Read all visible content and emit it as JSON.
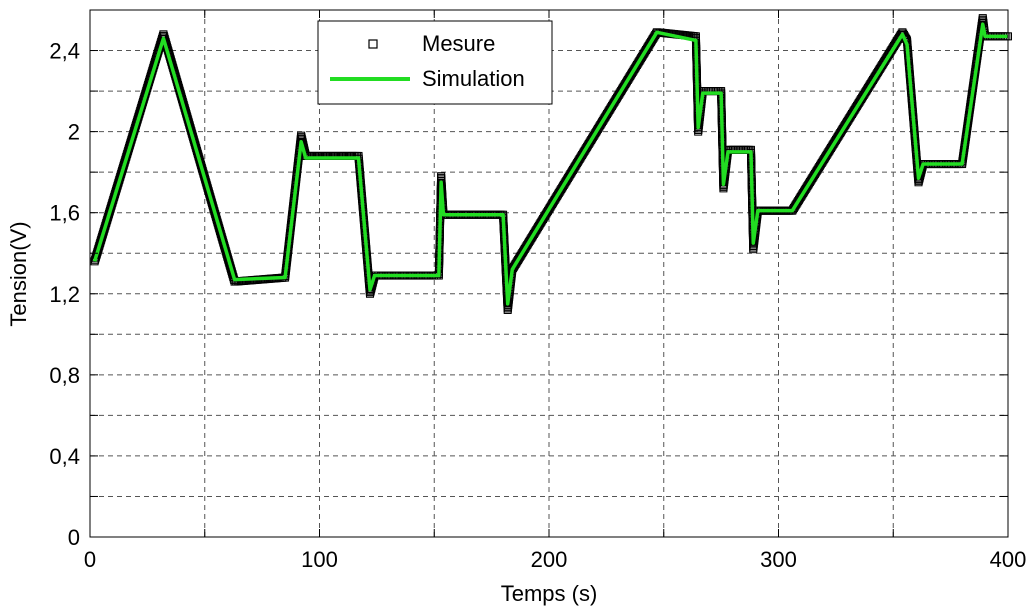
{
  "chart_data": {
    "type": "line",
    "title": "",
    "xlabel": "Temps (s)",
    "ylabel": "Tension(V)",
    "xlim": [
      0,
      400
    ],
    "ylim": [
      0,
      2.6
    ],
    "xticks": [
      0,
      100,
      200,
      300,
      400
    ],
    "xtick_labels": [
      "0",
      "100",
      "200",
      "300",
      "400"
    ],
    "yticks": [
      0,
      0.4,
      0.8,
      1.2,
      1.6,
      2.0,
      2.4
    ],
    "ytick_labels": [
      "0",
      "0,4",
      "0,8",
      "1,2",
      "1,6",
      "2",
      "2,4"
    ],
    "grid": true,
    "legend_position": "top-center",
    "series": [
      {
        "name": "Mesure",
        "style": "markers",
        "marker": "square",
        "color": "#000000",
        "x": [
          2,
          32,
          63,
          85,
          92,
          94,
          117,
          122,
          124,
          152,
          153,
          154,
          180,
          182,
          184,
          247,
          264,
          265,
          267,
          275,
          276,
          278,
          288,
          289,
          291,
          306,
          354,
          356,
          361,
          363,
          380,
          389,
          390,
          400
        ],
        "y": [
          1.36,
          2.48,
          1.26,
          1.28,
          1.98,
          1.88,
          1.88,
          1.2,
          1.29,
          1.29,
          1.78,
          1.59,
          1.59,
          1.12,
          1.32,
          2.49,
          2.47,
          2.0,
          2.2,
          2.2,
          1.72,
          1.91,
          1.91,
          1.42,
          1.61,
          1.61,
          2.49,
          2.45,
          1.75,
          1.84,
          1.84,
          2.56,
          2.47,
          2.47
        ]
      },
      {
        "name": "Simulation",
        "style": "line",
        "color": "#22dd22",
        "x": [
          2,
          32,
          63,
          85,
          92,
          94,
          117,
          122,
          124,
          152,
          153,
          154,
          180,
          182,
          184,
          247,
          264,
          265,
          267,
          275,
          276,
          278,
          288,
          289,
          291,
          306,
          354,
          356,
          361,
          363,
          380,
          389,
          390,
          400
        ],
        "y": [
          1.36,
          2.46,
          1.27,
          1.28,
          1.95,
          1.87,
          1.87,
          1.22,
          1.29,
          1.29,
          1.75,
          1.59,
          1.59,
          1.15,
          1.32,
          2.49,
          2.45,
          2.02,
          2.19,
          2.19,
          1.74,
          1.9,
          1.9,
          1.45,
          1.61,
          1.61,
          2.48,
          2.43,
          1.77,
          1.84,
          1.84,
          2.53,
          2.47,
          2.47
        ]
      }
    ]
  }
}
